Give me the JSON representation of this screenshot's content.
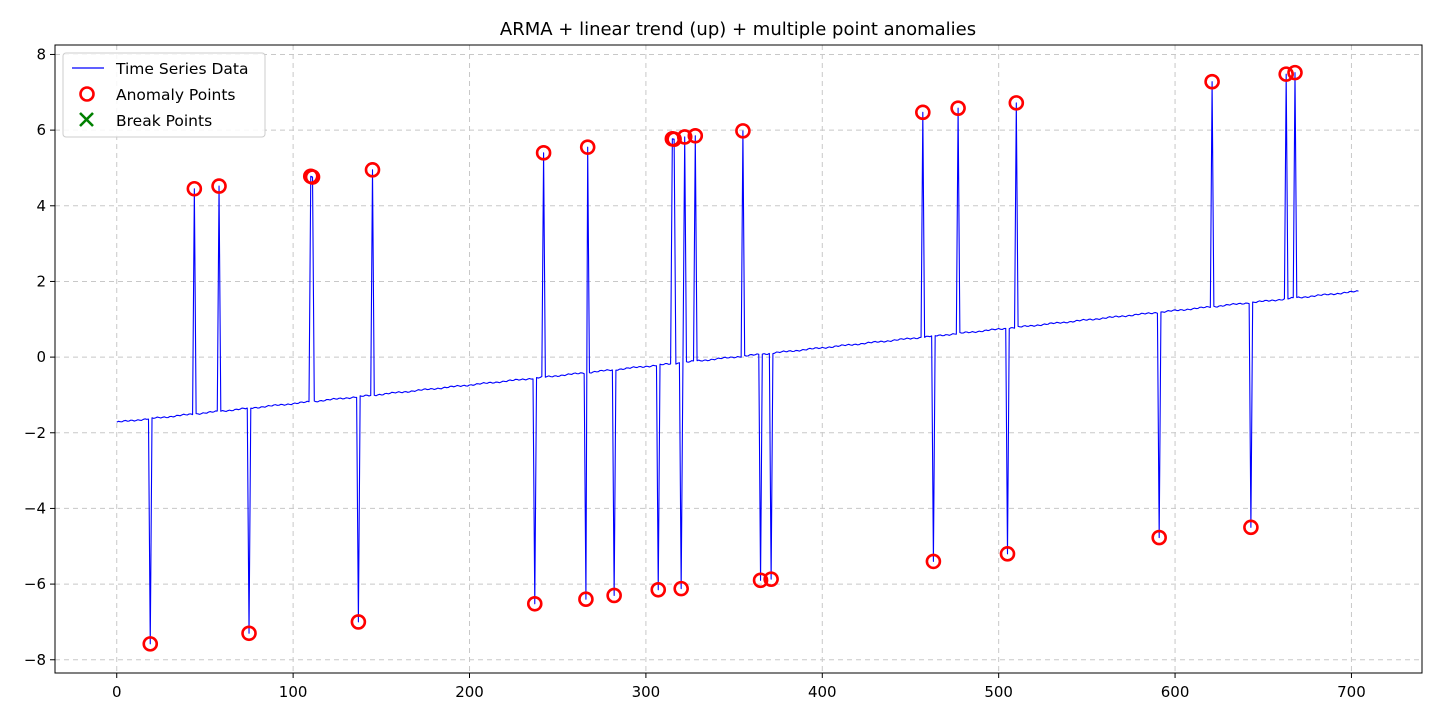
{
  "chart_data": {
    "type": "line",
    "title": "ARMA + linear trend (up) + multiple point anomalies",
    "xlabel": "",
    "ylabel": "",
    "xlim": [
      -35,
      740
    ],
    "ylim": [
      -8.35,
      8.25
    ],
    "grid": true,
    "legend_position": "top-left",
    "x_ticks": [
      0,
      100,
      200,
      300,
      400,
      500,
      600,
      700
    ],
    "y_ticks": [
      -8,
      -6,
      -4,
      -2,
      0,
      2,
      4,
      6,
      8
    ],
    "x_tick_labels": [
      "0",
      "100",
      "200",
      "300",
      "400",
      "500",
      "600",
      "700"
    ],
    "y_tick_labels": [
      "−8",
      "−6",
      "−4",
      "−2",
      "0",
      "2",
      "4",
      "6",
      "8"
    ],
    "series": [
      {
        "name": "Time Series Data",
        "kind": "line",
        "color": "#0000ff",
        "x_start": 0,
        "x_end": 704,
        "trend_start": -1.72,
        "trend_end": 1.74
      },
      {
        "name": "Anomaly Points",
        "kind": "scatter",
        "marker": "open-circle",
        "color": "#ff0000",
        "points": [
          [
            19,
            -7.58
          ],
          [
            44,
            4.45
          ],
          [
            58,
            4.52
          ],
          [
            75,
            -7.3
          ],
          [
            110,
            4.78
          ],
          [
            111,
            4.76
          ],
          [
            145,
            4.95
          ],
          [
            137,
            -7.0
          ],
          [
            237,
            -6.52
          ],
          [
            242,
            5.4
          ],
          [
            266,
            -6.4
          ],
          [
            267,
            5.55
          ],
          [
            282,
            -6.3
          ],
          [
            307,
            -6.15
          ],
          [
            315,
            5.77
          ],
          [
            316,
            5.76
          ],
          [
            320,
            -6.12
          ],
          [
            322,
            5.82
          ],
          [
            328,
            5.85
          ],
          [
            355,
            5.98
          ],
          [
            365,
            -5.9
          ],
          [
            371,
            -5.87
          ],
          [
            457,
            6.47
          ],
          [
            463,
            -5.4
          ],
          [
            477,
            6.58
          ],
          [
            505,
            -5.2
          ],
          [
            510,
            6.72
          ],
          [
            591,
            -4.77
          ],
          [
            621,
            7.28
          ],
          [
            643,
            -4.5
          ],
          [
            663,
            7.48
          ],
          [
            668,
            7.52
          ]
        ]
      },
      {
        "name": "Break Points",
        "kind": "scatter",
        "marker": "x",
        "color": "#008000",
        "points": []
      }
    ]
  }
}
